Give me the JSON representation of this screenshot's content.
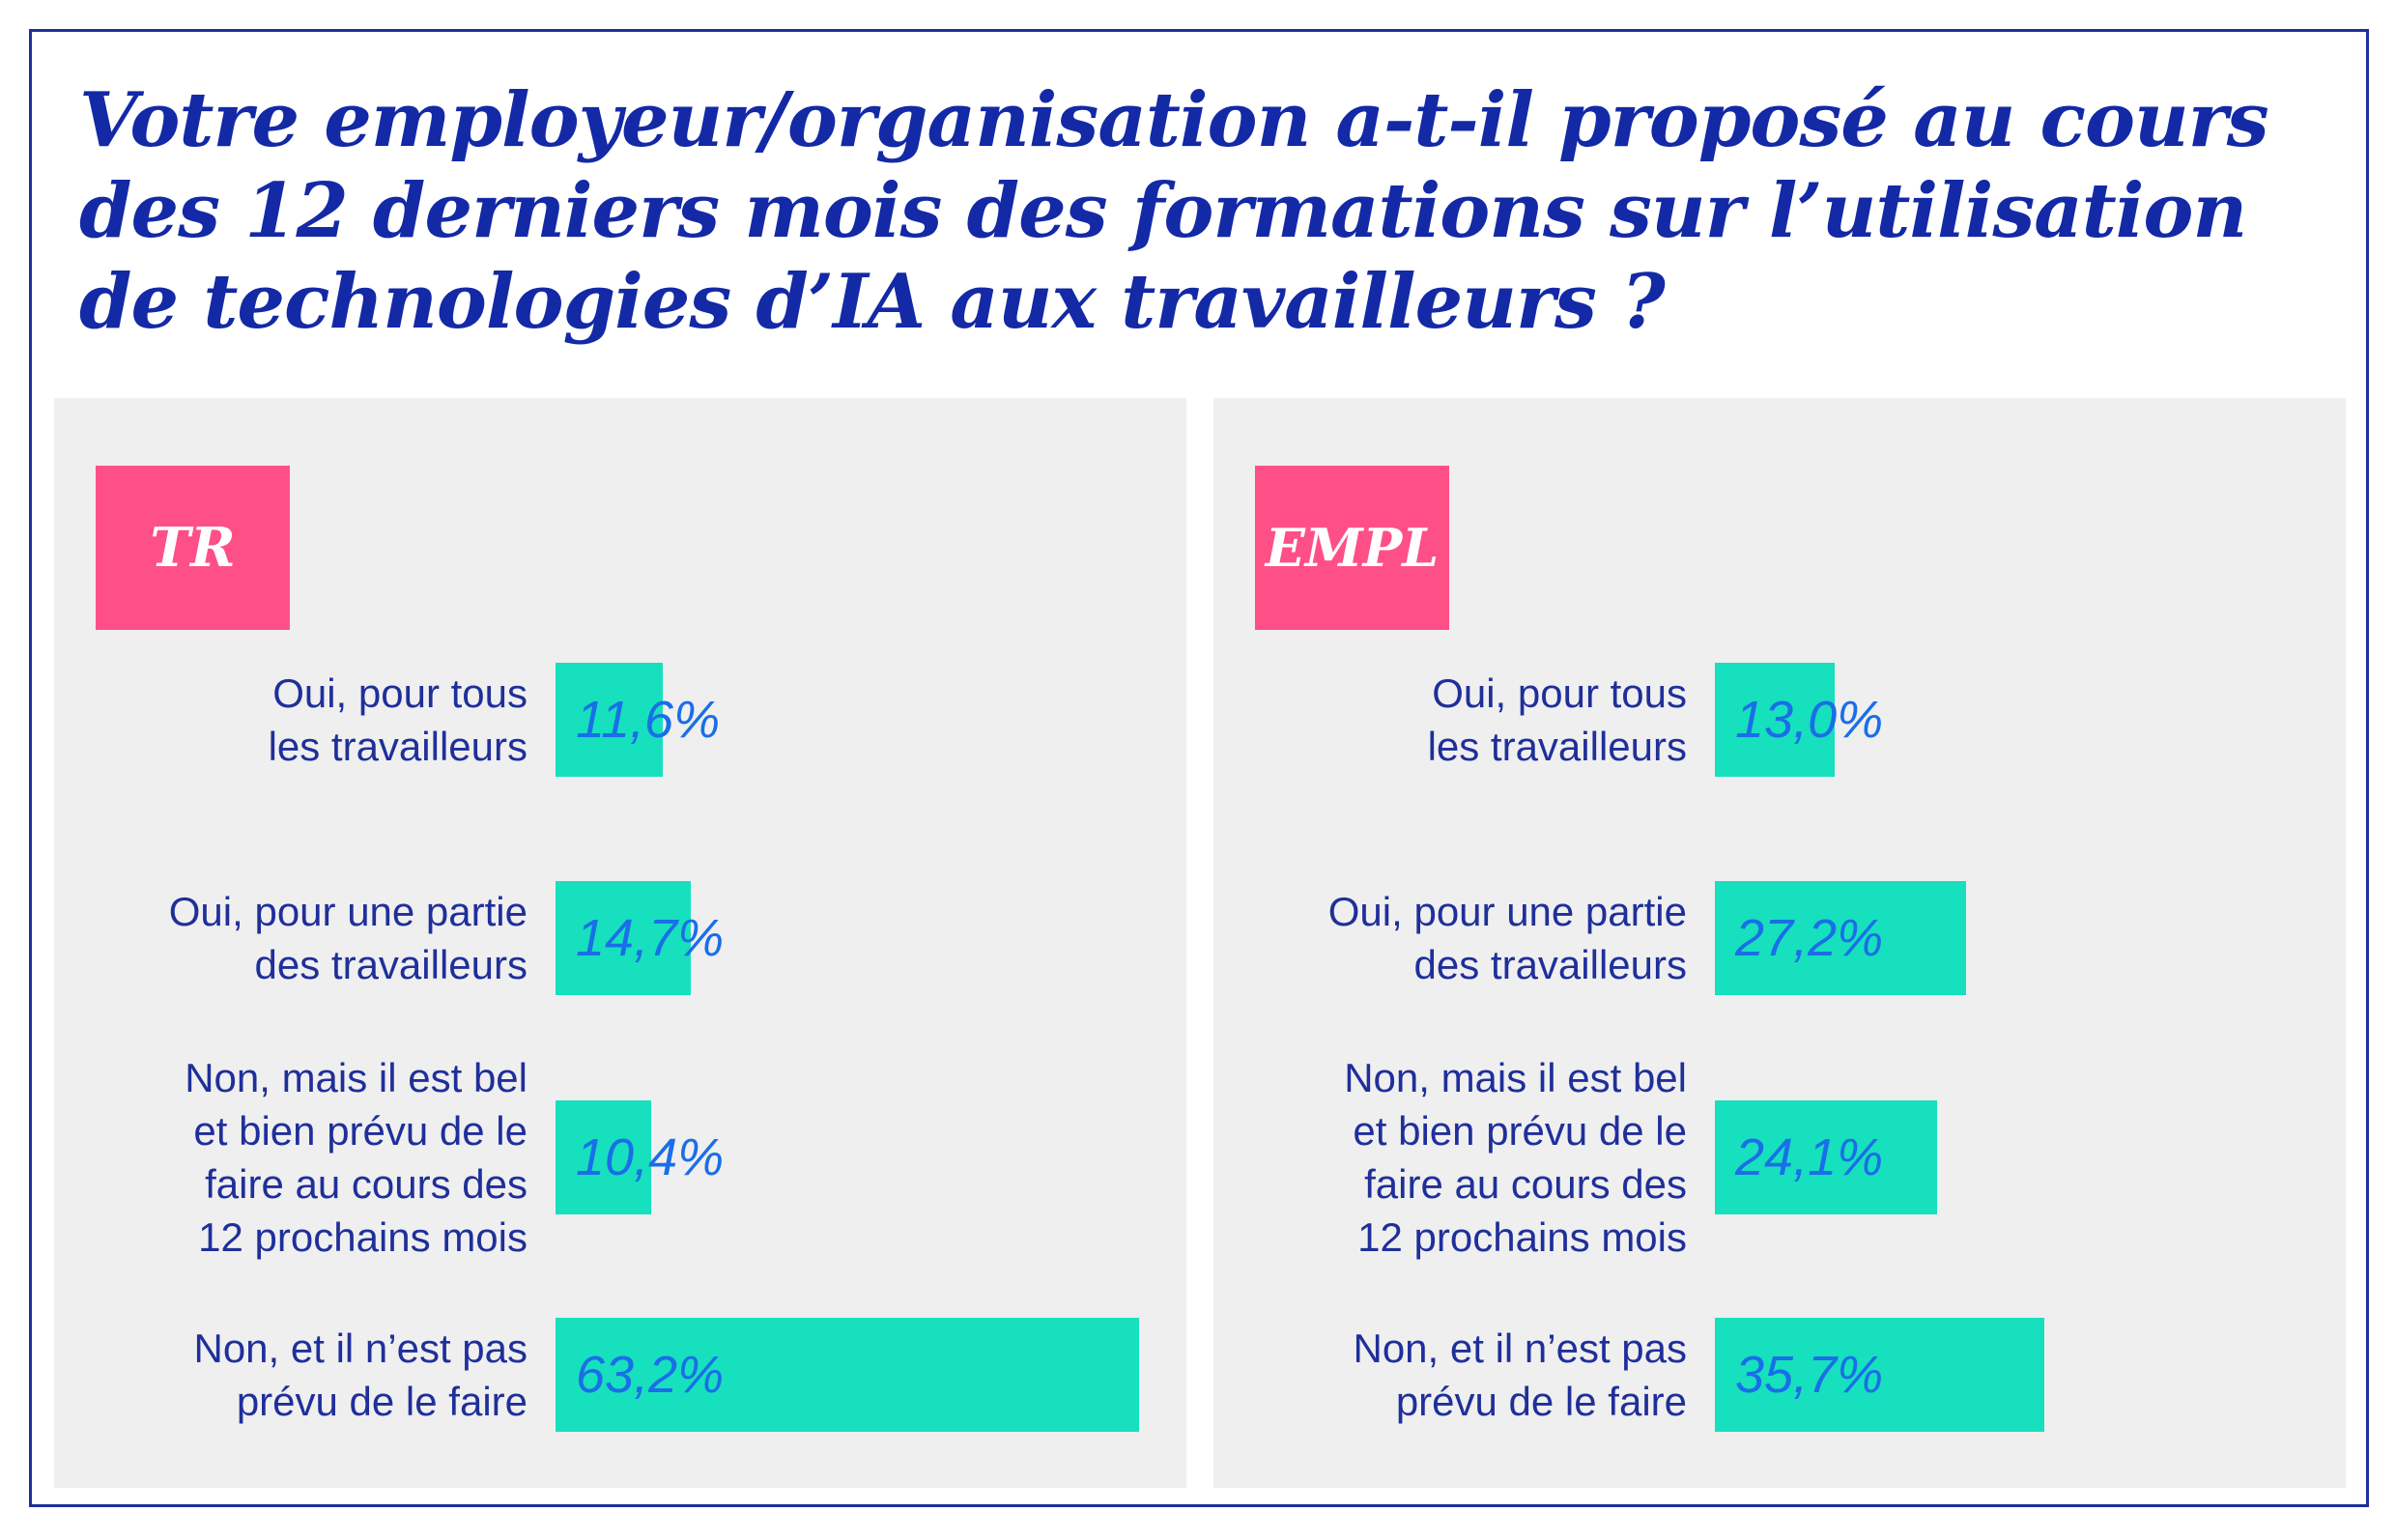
{
  "title": "Votre employeur/organisation a-t-il proposé au cours des 12 derniers mois des formations sur l’utilisation de technologies d’IA aux travailleurs ?",
  "colors": {
    "accent_bar": "#16e0bd",
    "tag": "#ff4f87",
    "title": "#1329a6",
    "label": "#1f2f9a",
    "value": "#1a6ee8",
    "panel": "#efefef"
  },
  "chart_data": [
    {
      "type": "bar",
      "orientation": "horizontal",
      "panel_label": "TR",
      "categories": [
        "Oui, pour tous\nles travailleurs",
        "Oui, pour une partie\ndes travailleurs",
        "Non, mais il est bel\net bien prévu de le\nfaire au cours des\n12 prochains mois",
        "Non, et il n’est pas\nprévu de le faire"
      ],
      "values": [
        11.6,
        14.7,
        10.4,
        63.2
      ],
      "value_labels": [
        "11,6%",
        "14,7%",
        "10,4%",
        "63,2%"
      ],
      "xlim": [
        0,
        63.2
      ]
    },
    {
      "type": "bar",
      "orientation": "horizontal",
      "panel_label": "EMPL",
      "categories": [
        "Oui, pour tous\nles travailleurs",
        "Oui, pour une partie\ndes travailleurs",
        "Non, mais il est bel\net bien prévu de le\nfaire au cours des\n12 prochains mois",
        "Non, et il n’est pas\nprévu de le faire"
      ],
      "values": [
        13.0,
        27.2,
        24.1,
        35.7
      ],
      "value_labels": [
        "13,0%",
        "27,2%",
        "24,1%",
        "35,7%"
      ],
      "xlim": [
        0,
        63.2
      ]
    }
  ]
}
